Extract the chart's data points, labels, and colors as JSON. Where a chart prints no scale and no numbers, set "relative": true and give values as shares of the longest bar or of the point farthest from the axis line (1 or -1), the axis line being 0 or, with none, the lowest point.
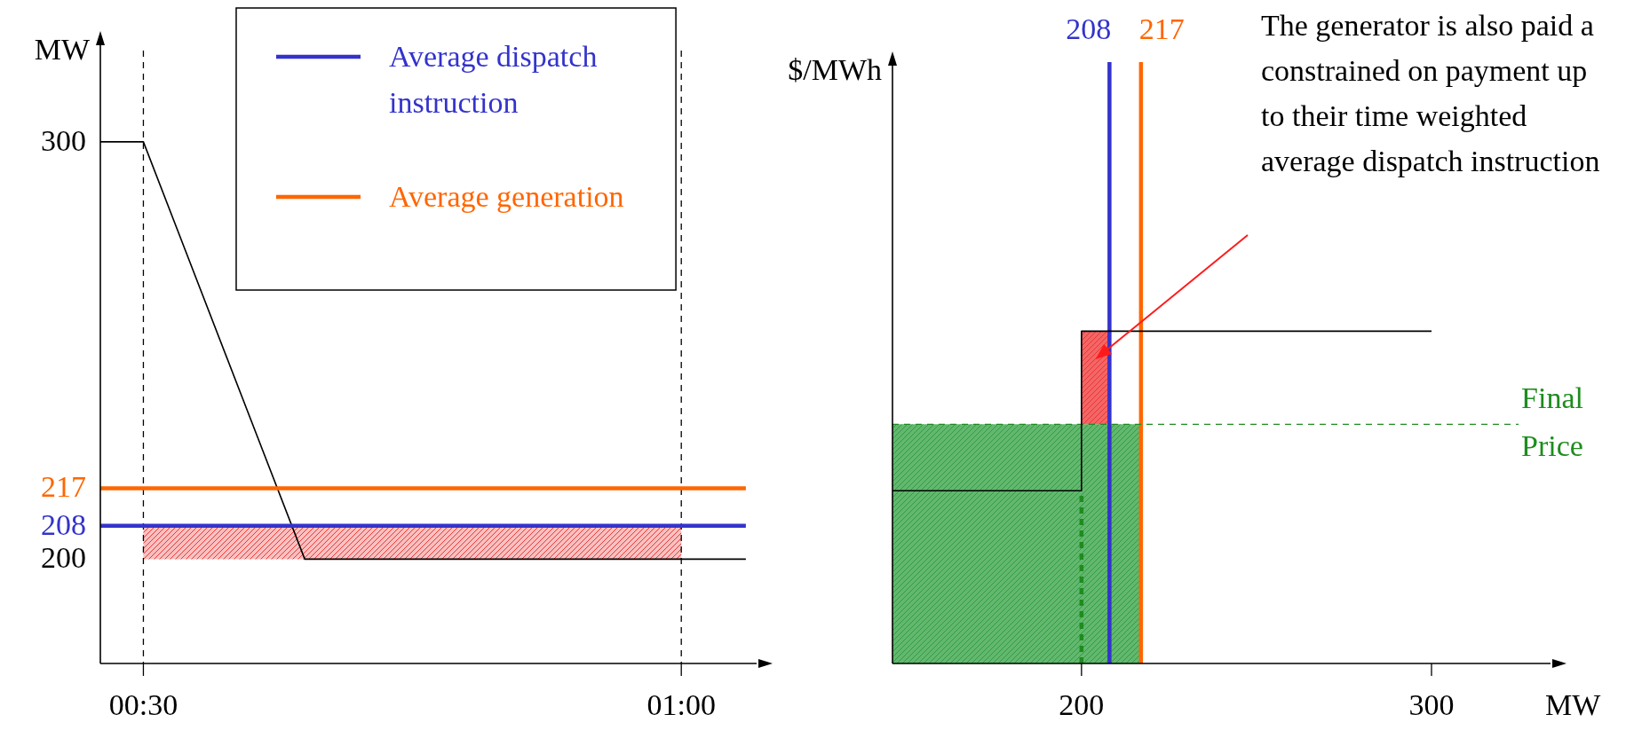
{
  "chart_data": [
    {
      "type": "line",
      "ylabel": "MW",
      "xlim": [
        0.46,
        1.07
      ],
      "ylim": [
        175,
        324
      ],
      "xticks": [
        {
          "value": 0.5,
          "label": "00:30"
        },
        {
          "value": 1,
          "label": "01:00"
        }
      ],
      "yticks": [
        200,
        208,
        217,
        300
      ],
      "legend": "top",
      "ref_lines": [
        {
          "axis": "x",
          "value": 0.5,
          "color": "#000000",
          "line_style": "dashed"
        },
        {
          "axis": "x",
          "value": 1,
          "color": "#000000",
          "line_style": "dashed"
        }
      ],
      "series": [
        {
          "color": "#000000",
          "x": [
            0.46,
            0.5,
            0.65,
            1.06
          ],
          "values": [
            300,
            300,
            200,
            200
          ]
        },
        {
          "name": "Average dispatch instruction",
          "color": "#3333cc",
          "x": [
            0.46,
            0.5,
            1,
            1.06
          ],
          "values": [
            208,
            208,
            208,
            208
          ],
          "lower": [
            null,
            200,
            200,
            null
          ],
          "upper": [
            null,
            208,
            208,
            null
          ]
        },
        {
          "name": "Average generation",
          "color": "#ff6600",
          "x": [
            0.46,
            1.06
          ],
          "values": [
            217,
            217
          ]
        }
      ]
    },
    {
      "type": "line",
      "relative": true,
      "ylabel": "$/MWh",
      "xlabel": "MW",
      "xlim": [
        146,
        334
      ],
      "xticks": [
        200,
        300
      ],
      "tick_labels": "x",
      "ref_lines": [
        {
          "axis": "x",
          "value": 208,
          "label": "208",
          "color": "#3333cc"
        },
        {
          "axis": "x",
          "value": 217,
          "label": "217",
          "color": "#ff6600"
        },
        {
          "axis": "y",
          "value": 0.72,
          "label": "Final Price",
          "color": "#1e8c1e",
          "line_style": "dashed"
        }
      ],
      "annotations": [
        "The generator is also paid a constrained on payment up to their time weighted average dispatch instruction"
      ],
      "series": [
        {
          "type": "area",
          "color": "#2e9e3e",
          "x": [
            146,
            217
          ],
          "values": [
            0.72,
            0.72
          ]
        },
        {
          "type": "step",
          "color": "#000000",
          "x": [
            146,
            200,
            208,
            300
          ],
          "values": [
            0.52,
            1,
            1,
            1
          ],
          "lower": [
            null,
            0.72,
            0.72,
            null
          ],
          "upper": [
            null,
            1,
            1,
            null
          ]
        },
        {
          "color": "#1e8c1e",
          "line_style": "dashed",
          "x": [
            200,
            200
          ],
          "values": [
            0,
            0.52
          ]
        }
      ]
    }
  ]
}
